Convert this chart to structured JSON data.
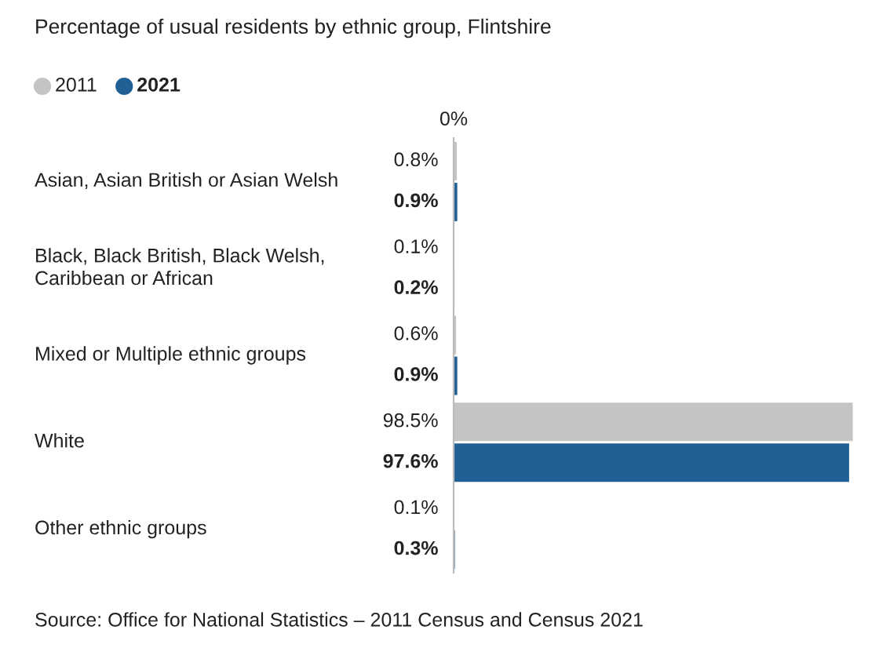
{
  "chart_data": {
    "type": "bar",
    "orientation": "horizontal",
    "title": "Percentage of usual residents by ethnic group, Flintshire",
    "categories": [
      "Asian, Asian British or Asian Welsh",
      "Black, Black British, Black Welsh, Caribbean or African",
      "Mixed or Multiple ethnic groups",
      "White",
      "Other ethnic groups"
    ],
    "series": [
      {
        "name": "2011",
        "color": "#c4c4c4",
        "values": [
          0.8,
          0.1,
          0.6,
          98.5,
          0.1
        ],
        "value_labels": [
          "0.8%",
          "0.1%",
          "0.6%",
          "98.5%",
          "0.1%"
        ]
      },
      {
        "name": "2021",
        "color": "#206095",
        "values": [
          0.9,
          0.2,
          0.9,
          97.6,
          0.3
        ],
        "value_labels": [
          "0.9%",
          "0.2%",
          "0.9%",
          "97.6%",
          "0.3%"
        ]
      }
    ],
    "legend": "top left",
    "annotations": [
      "0%",
      "Source: Office for National Statistics – 2011 Census and Census 2021"
    ]
  }
}
